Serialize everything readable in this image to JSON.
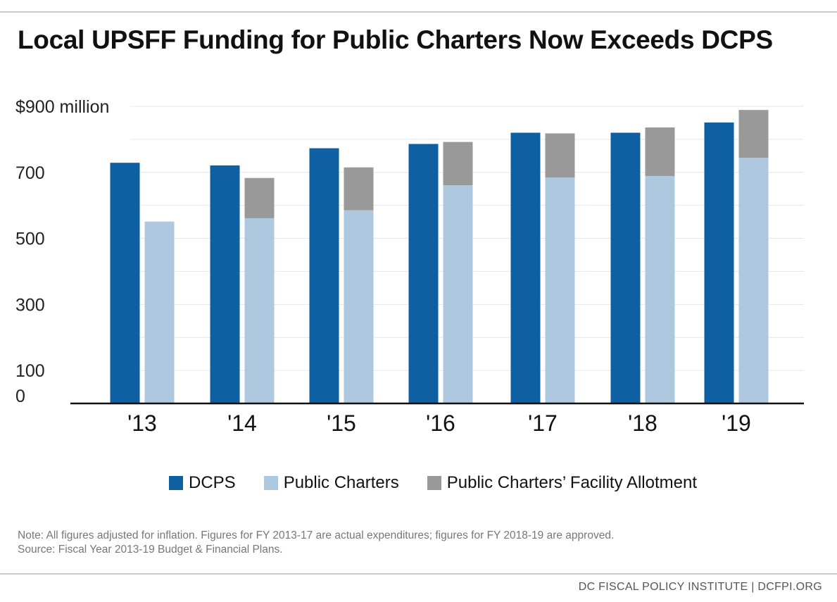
{
  "title": "Local UPSFF Funding for Public Charters Now Exceeds DCPS",
  "chart_data": {
    "type": "bar",
    "stacked_groups": true,
    "categories": [
      "'13",
      "'14",
      "'15",
      "'16",
      "'17",
      "'18",
      "'19"
    ],
    "y_ticks": [
      {
        "value": 0,
        "label": "0"
      },
      {
        "value": 100,
        "label": "100"
      },
      {
        "value": 300,
        "label": "300"
      },
      {
        "value": 500,
        "label": "500"
      },
      {
        "value": 700,
        "label": "700"
      },
      {
        "value": 900,
        "label": "$900 million"
      }
    ],
    "ylim": [
      0,
      900
    ],
    "grid": true,
    "legend_position": "bottom",
    "series": [
      {
        "name": "DCPS",
        "color": "#0f5fa3",
        "stack": "dcps",
        "values": [
          729,
          721,
          773,
          786,
          820,
          820,
          851
        ]
      },
      {
        "name": "Public Charters",
        "color": "#adc8df",
        "stack": "charters",
        "values": [
          551,
          561,
          585,
          661,
          684,
          689,
          744
        ]
      },
      {
        "name": "Public Charters’ Facility Allotment",
        "color": "#999999",
        "stack": "charters",
        "values": [
          0,
          122,
          130,
          131,
          134,
          147,
          145
        ]
      }
    ]
  },
  "note": {
    "line1": "Note: All figures adjusted for inflation. Figures for FY 2013-17 are actual expenditures; figures for FY 2018-19 are approved.",
    "line2": "Source: Fiscal Year 2013-19 Budget & Financial Plans."
  },
  "footer": "DC FISCAL POLICY INSTITUTE | DCFPI.ORG"
}
